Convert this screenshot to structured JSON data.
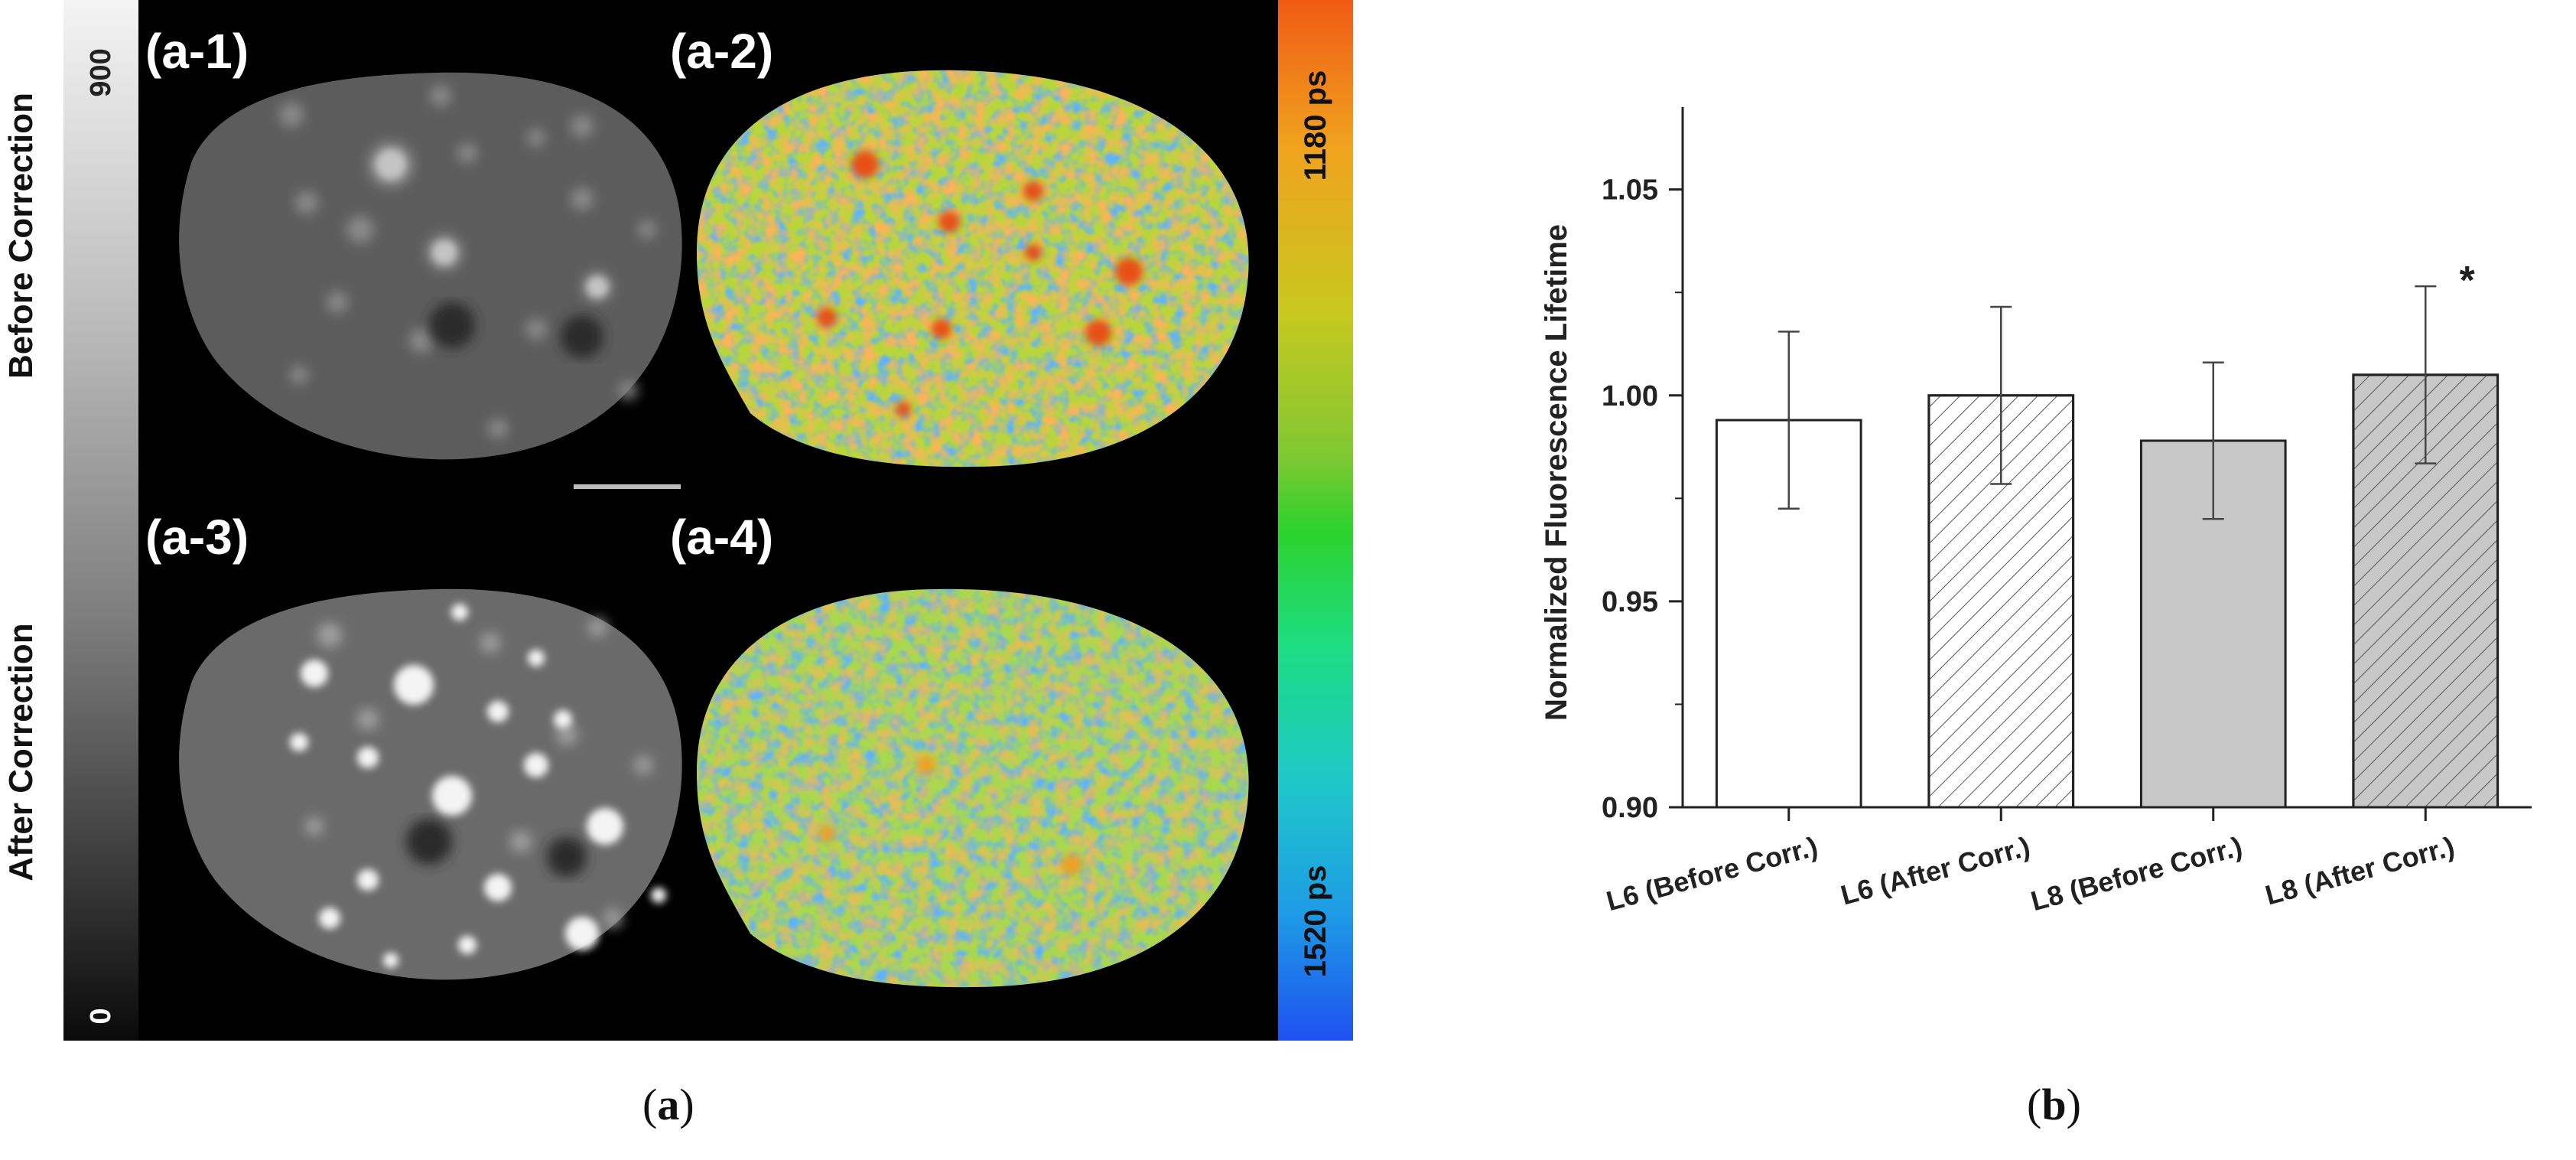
{
  "panel_a": {
    "caption_open": "(",
    "caption_letter": "a",
    "caption_close": ")",
    "row_labels": [
      "Before Correction",
      "After Correction"
    ],
    "grayscale_bar": {
      "max": "900",
      "min": "0"
    },
    "lifetime_bar": {
      "top": "1180 ps",
      "bottom": "1520 ps"
    },
    "sublabels": [
      "(a-1)",
      "(a-2)",
      "(a-3)",
      "(a-4)"
    ]
  },
  "panel_b": {
    "caption_open": "(",
    "caption_letter": "b",
    "caption_close": ")"
  },
  "chart_data": {
    "type": "bar",
    "title": "",
    "xlabel": "",
    "ylabel": "Normalized Fluorescence Lifetime",
    "ylim": [
      0.9,
      1.07
    ],
    "yticks": [
      0.9,
      0.95,
      1.0,
      1.05
    ],
    "ytick_labels": [
      "0.90",
      "0.95",
      "1.00",
      "1.05"
    ],
    "categories": [
      "L6 (Before Corr.)",
      "L6 (After Corr.)",
      "L8 (Before Corr.)",
      "L8 (After Corr.)"
    ],
    "values": [
      0.994,
      1.0,
      0.989,
      1.005
    ],
    "errors": [
      0.0215,
      0.0215,
      0.019,
      0.0215
    ],
    "fills": [
      "#ffffff",
      "#ffffff",
      "#c8c8c8",
      "#c8c8c8"
    ],
    "hatched": [
      false,
      true,
      false,
      true
    ],
    "annotations": [
      "",
      "",
      "",
      "*"
    ]
  }
}
